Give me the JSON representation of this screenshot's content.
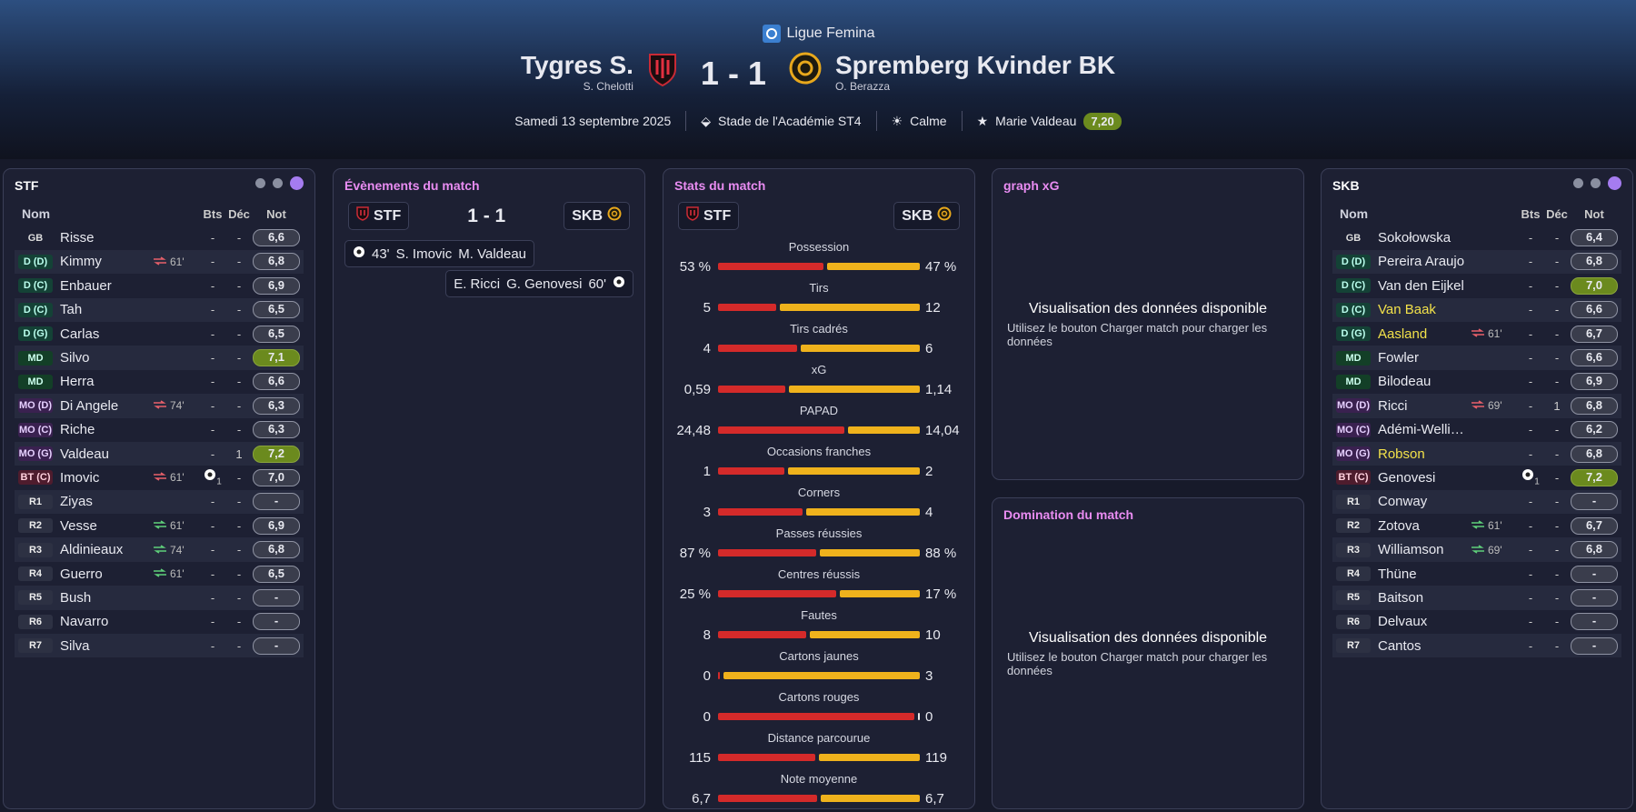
{
  "header": {
    "league": "Ligue Femina",
    "home_team": "Tygres S.",
    "home_coach": "S. Chelotti",
    "score": "1 - 1",
    "away_team": "Spremberg Kvinder BK",
    "away_coach": "O. Berazza",
    "date": "Samedi 13 septembre 2025",
    "stadium": "Stade de l'Académie ST4",
    "weather": "Calme",
    "motm": "Marie Valdeau",
    "motm_rating": "7,20"
  },
  "home_lineup": {
    "team": "STF",
    "columns": [
      "Nom",
      "Bts",
      "Déc",
      "Not"
    ],
    "players": [
      {
        "pos": "GB",
        "name": "Risse",
        "goals": "-",
        "assists": "-",
        "rating": "6,6"
      },
      {
        "pos": "D (D)",
        "name": "Kimmy",
        "sub": "61'",
        "sub_dir": "out",
        "goals": "-",
        "assists": "-",
        "rating": "6,8"
      },
      {
        "pos": "D (C)",
        "name": "Enbauer",
        "goals": "-",
        "assists": "-",
        "rating": "6,9"
      },
      {
        "pos": "D (C)",
        "name": "Tah",
        "goals": "-",
        "assists": "-",
        "rating": "6,5"
      },
      {
        "pos": "D (G)",
        "name": "Carlas",
        "goals": "-",
        "assists": "-",
        "rating": "6,5"
      },
      {
        "pos": "MD",
        "name": "Silvo",
        "goals": "-",
        "assists": "-",
        "rating": "7,1",
        "highlight": true
      },
      {
        "pos": "MD",
        "name": "Herra",
        "goals": "-",
        "assists": "-",
        "rating": "6,6"
      },
      {
        "pos": "MO (D)",
        "name": "Di Angele",
        "sub": "74'",
        "sub_dir": "out",
        "goals": "-",
        "assists": "-",
        "rating": "6,3"
      },
      {
        "pos": "MO (C)",
        "name": "Riche",
        "goals": "-",
        "assists": "-",
        "rating": "6,3"
      },
      {
        "pos": "MO (G)",
        "name": "Valdeau",
        "goals": "-",
        "assists": "1",
        "rating": "7,2",
        "highlight": true
      },
      {
        "pos": "BT (C)",
        "name": "Imovic",
        "sub": "61'",
        "sub_dir": "out",
        "goals": "1",
        "assists": "-",
        "rating": "7,0"
      },
      {
        "pos": "R1",
        "name": "Ziyas",
        "goals": "-",
        "assists": "-",
        "rating": "-"
      },
      {
        "pos": "R2",
        "name": "Vesse",
        "sub": "61'",
        "sub_dir": "in",
        "goals": "-",
        "assists": "-",
        "rating": "6,9"
      },
      {
        "pos": "R3",
        "name": "Aldinieaux",
        "sub": "74'",
        "sub_dir": "in",
        "goals": "-",
        "assists": "-",
        "rating": "6,8"
      },
      {
        "pos": "R4",
        "name": "Guerro",
        "sub": "61'",
        "sub_dir": "in",
        "goals": "-",
        "assists": "-",
        "rating": "6,5"
      },
      {
        "pos": "R5",
        "name": "Bush",
        "goals": "-",
        "assists": "-",
        "rating": "-"
      },
      {
        "pos": "R6",
        "name": "Navarro",
        "goals": "-",
        "assists": "-",
        "rating": "-"
      },
      {
        "pos": "R7",
        "name": "Silva",
        "goals": "-",
        "assists": "-",
        "rating": "-"
      }
    ]
  },
  "events": {
    "title": "Évènements du match",
    "home_tag": "STF",
    "away_tag": "SKB",
    "score": "1 - 1",
    "items": [
      {
        "side": "home",
        "minute": "43'",
        "player": "S. Imovic",
        "assist": "M. Valdeau"
      },
      {
        "side": "away",
        "minute": "60'",
        "player": "G. Genovesi",
        "assist": "E. Ricci"
      }
    ]
  },
  "stats": {
    "title": "Stats du match",
    "home_tag": "STF",
    "away_tag": "SKB",
    "rows": [
      {
        "label": "Possession",
        "home": {
          "value": 53,
          "label": "53 %"
        },
        "away": {
          "value": 47,
          "label": "47 %"
        }
      },
      {
        "label": "Tirs",
        "home": 5,
        "away": 12
      },
      {
        "label": "Tirs cadrés",
        "home": 4,
        "away": 6
      },
      {
        "label": "xG",
        "home": {
          "value": 0.59,
          "label": "0,59"
        },
        "away": {
          "value": 1.14,
          "label": "1,14"
        }
      },
      {
        "label": "PAPAD",
        "home": {
          "value": 24.48,
          "label": "24,48"
        },
        "away": {
          "value": 14.04,
          "label": "14,04"
        }
      },
      {
        "label": "Occasions franches",
        "home": 1,
        "away": 2
      },
      {
        "label": "Corners",
        "home": 3,
        "away": 4
      },
      {
        "label": "Passes réussies",
        "home": {
          "value": 87,
          "label": "87 %"
        },
        "away": {
          "value": 88,
          "label": "88 %"
        }
      },
      {
        "label": "Centres réussis",
        "home": {
          "value": 25,
          "label": "25 %"
        },
        "away": {
          "value": 17,
          "label": "17 %"
        }
      },
      {
        "label": "Fautes",
        "home": 8,
        "away": 10
      },
      {
        "label": "Cartons jaunes",
        "home": 0,
        "away": 3
      },
      {
        "label": "Cartons rouges",
        "home": 0,
        "away": 0
      },
      {
        "label": "Distance parcourue",
        "home": 115,
        "away": 119
      },
      {
        "label": "Note moyenne",
        "home": {
          "value": 6.7,
          "label": "6,7"
        },
        "away": {
          "value": 6.7,
          "label": "6,7"
        }
      }
    ]
  },
  "xg": {
    "title": "graph xG",
    "placeholder_title": "Visualisation des données disponible",
    "placeholder_text": "Utilisez le bouton Charger match pour charger les données"
  },
  "domination": {
    "title": "Domination du match",
    "placeholder_title": "Visualisation des données disponible",
    "placeholder_text": "Utilisez le bouton Charger match pour charger les données"
  },
  "away_lineup": {
    "team": "SKB",
    "columns": [
      "Nom",
      "Bts",
      "Déc",
      "Not"
    ],
    "players": [
      {
        "pos": "GB",
        "name": "Sokołowska",
        "goals": "-",
        "assists": "-",
        "rating": "6,4"
      },
      {
        "pos": "D (D)",
        "name": "Pereira Araujo",
        "goals": "-",
        "assists": "-",
        "rating": "6,8"
      },
      {
        "pos": "D (C)",
        "name": "Van den Eijkel",
        "goals": "-",
        "assists": "-",
        "rating": "7,0",
        "highlight": true
      },
      {
        "pos": "D (C)",
        "name": "Van Baak",
        "goals": "-",
        "assists": "-",
        "rating": "6,6",
        "name_highlight": true
      },
      {
        "pos": "D (G)",
        "name": "Aasland",
        "sub": "61'",
        "sub_dir": "out",
        "goals": "-",
        "assists": "-",
        "rating": "6,7",
        "name_highlight": true
      },
      {
        "pos": "MD",
        "name": "Fowler",
        "goals": "-",
        "assists": "-",
        "rating": "6,6"
      },
      {
        "pos": "MD",
        "name": "Bilodeau",
        "goals": "-",
        "assists": "-",
        "rating": "6,9"
      },
      {
        "pos": "MO (D)",
        "name": "Ricci",
        "sub": "69'",
        "sub_dir": "out",
        "goals": "-",
        "assists": "1",
        "rating": "6,8"
      },
      {
        "pos": "MO (C)",
        "name": "Adémi-Welli…",
        "goals": "-",
        "assists": "-",
        "rating": "6,2"
      },
      {
        "pos": "MO (G)",
        "name": "Robson",
        "goals": "-",
        "assists": "-",
        "rating": "6,8",
        "name_highlight": true
      },
      {
        "pos": "BT (C)",
        "name": "Genovesi",
        "goals": "1",
        "assists": "-",
        "rating": "7,2",
        "highlight": true
      },
      {
        "pos": "R1",
        "name": "Conway",
        "goals": "-",
        "assists": "-",
        "rating": "-"
      },
      {
        "pos": "R2",
        "name": "Zotova",
        "sub": "61'",
        "sub_dir": "in",
        "goals": "-",
        "assists": "-",
        "rating": "6,7"
      },
      {
        "pos": "R3",
        "name": "Williamson",
        "sub": "69'",
        "sub_dir": "in",
        "goals": "-",
        "assists": "-",
        "rating": "6,8"
      },
      {
        "pos": "R4",
        "name": "Thüne",
        "goals": "-",
        "assists": "-",
        "rating": "-"
      },
      {
        "pos": "R5",
        "name": "Baitson",
        "goals": "-",
        "assists": "-",
        "rating": "-"
      },
      {
        "pos": "R6",
        "name": "Delvaux",
        "goals": "-",
        "assists": "-",
        "rating": "-"
      },
      {
        "pos": "R7",
        "name": "Cantos",
        "goals": "-",
        "assists": "-",
        "rating": "-"
      }
    ]
  }
}
